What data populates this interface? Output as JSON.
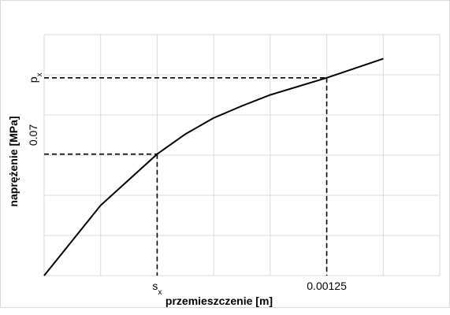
{
  "chart_data": {
    "type": "line",
    "title": "",
    "xlabel": "przemieszczenie [m]",
    "ylabel": "naprężenie [MPa]",
    "xlim": [
      0,
      0.00175
    ],
    "ylim": [
      0,
      0.12
    ],
    "grid": true,
    "x_tick_labels": [
      {
        "value": 0.0005,
        "label": "s",
        "sub": "x"
      },
      {
        "value": 0.00125,
        "label": "0.00125",
        "sub": ""
      }
    ],
    "y_tick_labels": [
      {
        "value": 0.07,
        "label": "0.07",
        "sub": ""
      },
      {
        "value": 0.0985,
        "label": "p",
        "sub": "x"
      }
    ],
    "series": [
      {
        "x": [
          0,
          0.00025,
          0.0005,
          0.000625,
          0.00075,
          0.000875,
          0.001,
          0.00125,
          0.0015
        ],
        "y": [
          0,
          0.035,
          0.0605,
          0.0705,
          0.0785,
          0.0845,
          0.09,
          0.0985,
          0.108
        ],
        "color": "#000000"
      }
    ],
    "reference_lines": [
      {
        "x": 0.0005,
        "y": 0.0605
      },
      {
        "x": 0.00125,
        "y": 0.0985
      }
    ]
  }
}
